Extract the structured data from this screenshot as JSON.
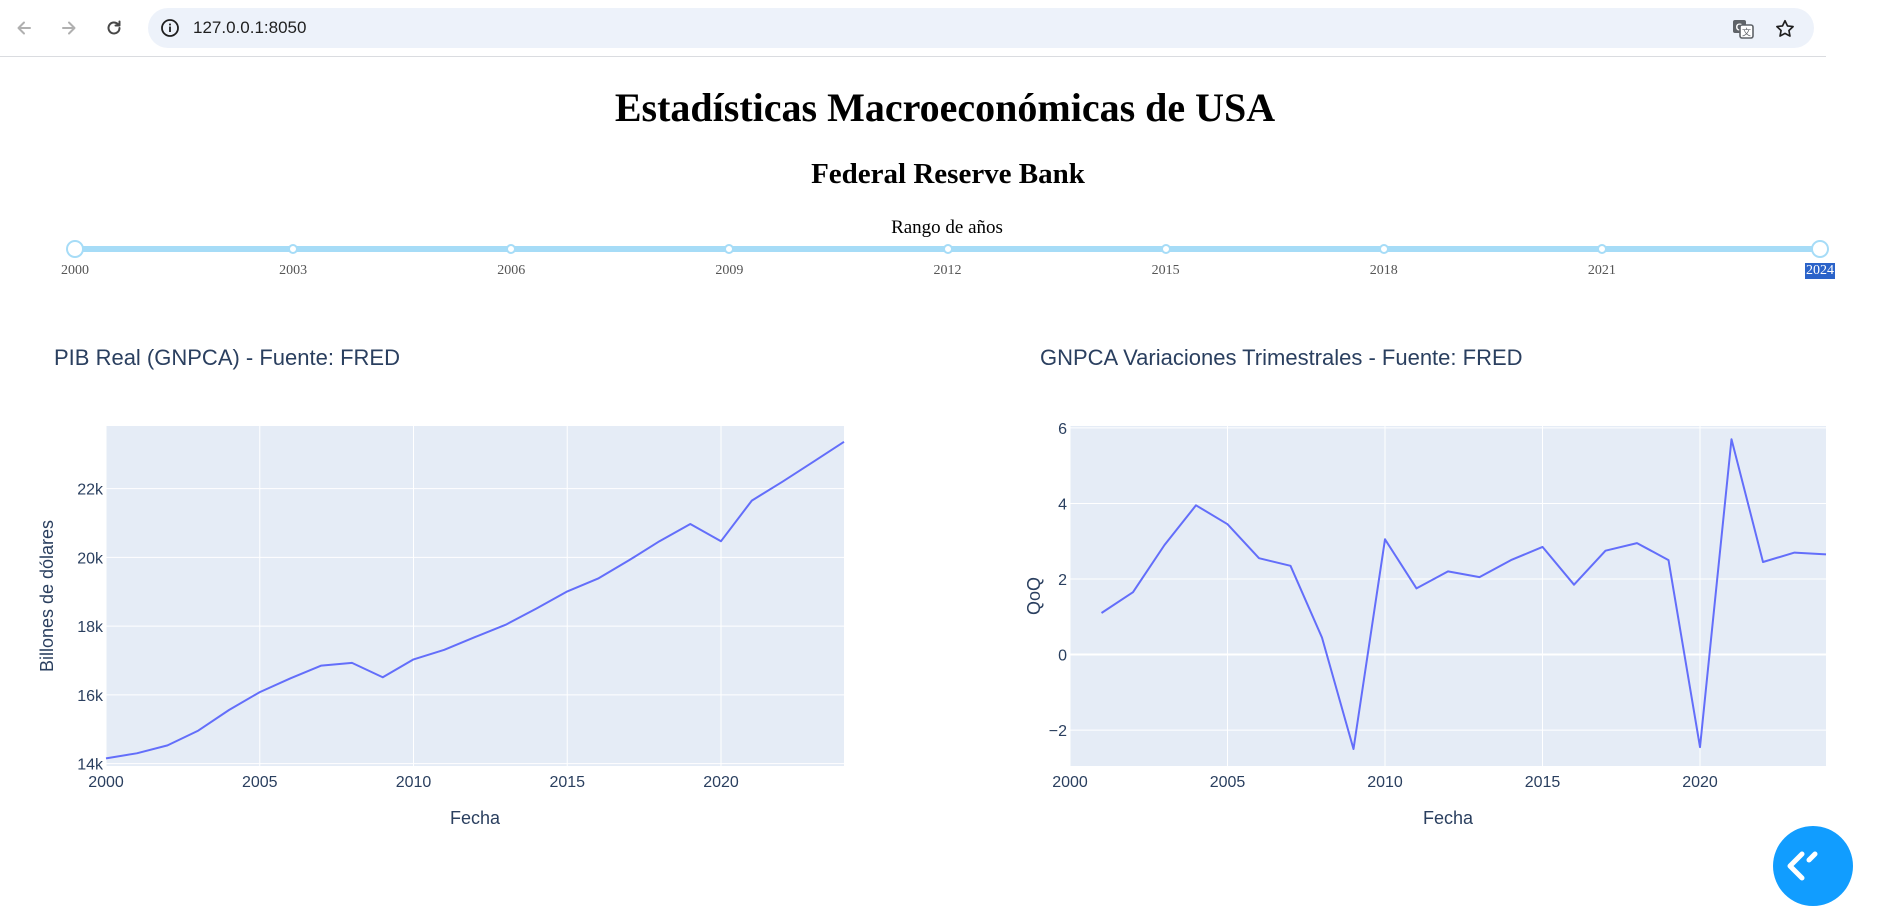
{
  "browser": {
    "url": "127.0.0.1:8050",
    "icons": [
      "back-arrow-icon",
      "forward-arrow-icon",
      "reload-icon",
      "info-icon",
      "translate-icon",
      "star-icon"
    ]
  },
  "page": {
    "title": "Estadísticas Macroeconómicas de USA",
    "subtitle": "Federal Reserve Bank",
    "range_label": "Rango de años"
  },
  "slider": {
    "min": 2000,
    "max": 2024,
    "value": [
      2000,
      2024
    ],
    "marks": [
      "2000",
      "2003",
      "2006",
      "2009",
      "2012",
      "2015",
      "2018",
      "2021",
      "2024"
    ],
    "selected_mark": "2024",
    "color": "#a6dcf7"
  },
  "colors": {
    "line": "#636efa",
    "plot_bg": "#e5ecf6",
    "text": "#2a3f5f",
    "fab": "#119dff"
  },
  "chart_data": [
    {
      "type": "line",
      "title": "PIB Real (GNPCA) - Fuente: FRED",
      "xlabel": "Fecha",
      "ylabel": "Billones de dólares",
      "xlim": [
        2000,
        2024
      ],
      "ylim": [
        13930,
        23820
      ],
      "xticks": [
        2000,
        2005,
        2010,
        2015,
        2020
      ],
      "xtick_labels": [
        "2000",
        "2005",
        "2010",
        "2015",
        "2020"
      ],
      "yticks": [
        14000,
        16000,
        18000,
        20000,
        22000
      ],
      "ytick_labels": [
        "14k",
        "16k",
        "18k",
        "20k",
        "22k"
      ],
      "grid": true,
      "series": [
        {
          "x": [
            2000,
            2001,
            2002,
            2003,
            2004,
            2005,
            2006,
            2007,
            2008,
            2009,
            2010,
            2011,
            2012,
            2013,
            2014,
            2015,
            2016,
            2017,
            2018,
            2019,
            2020,
            2021,
            2022,
            2023,
            2024
          ],
          "values": [
            14150,
            14300,
            14530,
            14960,
            15560,
            16080,
            16480,
            16850,
            16930,
            16510,
            17030,
            17310,
            17680,
            18040,
            18510,
            19010,
            19380,
            19910,
            20470,
            20970,
            20470,
            21650,
            22200,
            22780,
            23360
          ]
        }
      ]
    },
    {
      "type": "line",
      "title": "GNPCA Variaciones Trimestrales - Fuente: FRED",
      "xlabel": "Fecha",
      "ylabel": "QoQ",
      "xlim": [
        2000,
        2024
      ],
      "ylim": [
        -2.95,
        6.05
      ],
      "xticks": [
        2000,
        2005,
        2010,
        2015,
        2020
      ],
      "xtick_labels": [
        "2000",
        "2005",
        "2010",
        "2015",
        "2020"
      ],
      "yticks": [
        -2,
        0,
        2,
        4,
        6
      ],
      "ytick_labels": [
        "−2",
        "0",
        "2",
        "4",
        "6"
      ],
      "grid": true,
      "series": [
        {
          "x": [
            2001,
            2002,
            2003,
            2004,
            2005,
            2006,
            2007,
            2008,
            2009,
            2010,
            2011,
            2012,
            2013,
            2014,
            2015,
            2016,
            2017,
            2018,
            2019,
            2020,
            2021,
            2022,
            2023,
            2024
          ],
          "values": [
            1.1,
            1.65,
            2.9,
            3.95,
            3.45,
            2.55,
            2.35,
            0.45,
            -2.5,
            3.05,
            1.75,
            2.2,
            2.05,
            2.5,
            2.85,
            1.85,
            2.75,
            2.95,
            2.5,
            -2.45,
            5.7,
            2.45,
            2.7,
            2.65
          ]
        }
      ]
    }
  ]
}
